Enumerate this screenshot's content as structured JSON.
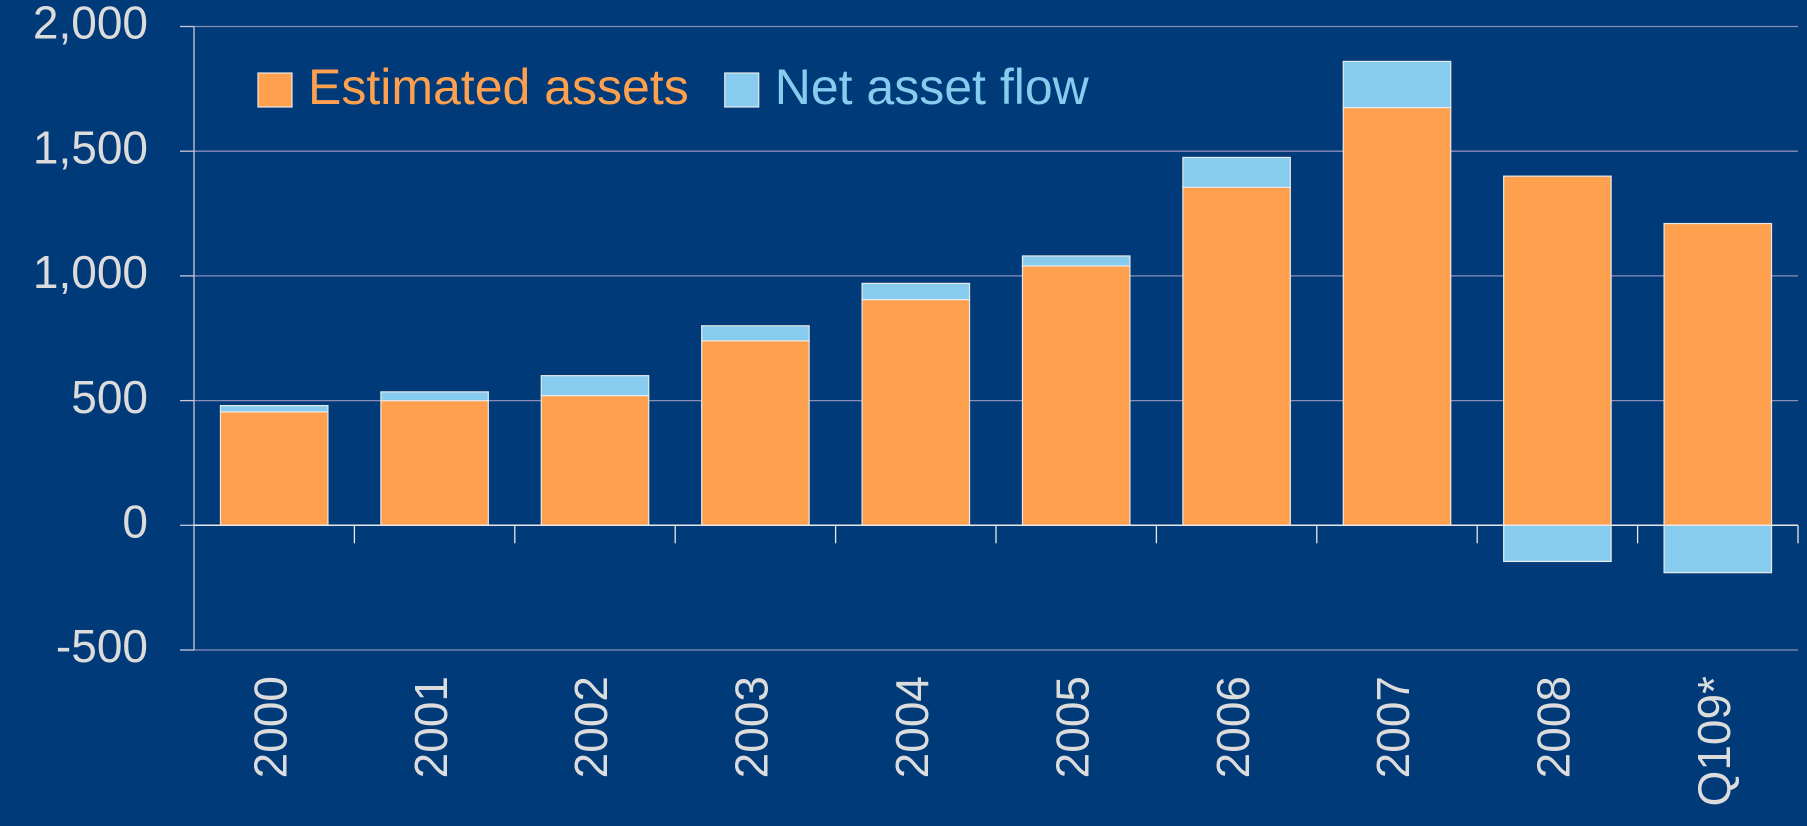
{
  "chart_data": {
    "type": "stacked_bar",
    "categories": [
      "2000",
      "2001",
      "2002",
      "2003",
      "2004",
      "2005",
      "2006",
      "2007",
      "2008",
      "Q109*"
    ],
    "series": [
      {
        "name": "Estimated assets",
        "color": "#ffa04f",
        "values": [
          455,
          500,
          520,
          740,
          905,
          1040,
          1355,
          1675,
          1400,
          1210
        ]
      },
      {
        "name": "Net asset flow",
        "color": "#87ccee",
        "values": [
          25,
          35,
          80,
          60,
          65,
          40,
          120,
          185,
          -145,
          -190
        ]
      }
    ],
    "ylim": [
      -500,
      2000
    ],
    "yticks": [
      -500,
      0,
      500,
      {
        "value": 1000,
        "label": "1,000"
      },
      {
        "value": 1500,
        "label": "1,500"
      },
      {
        "value": 2000,
        "label": "2,000"
      }
    ],
    "grid": true,
    "legend": "top-left"
  }
}
